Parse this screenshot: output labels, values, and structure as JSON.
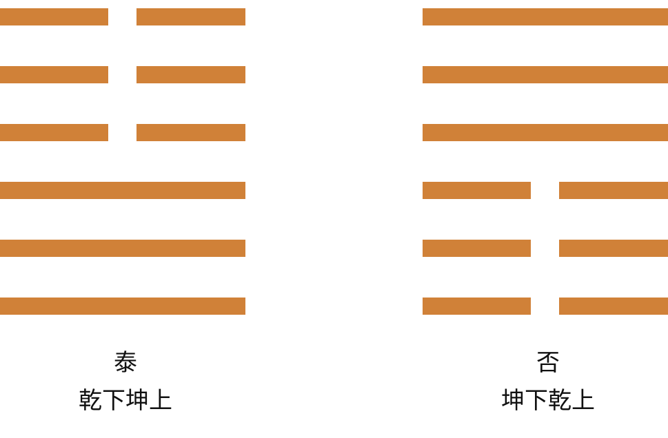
{
  "colors": {
    "line": "#D08138",
    "text": "#111111",
    "background": "#FFFFFF"
  },
  "hexagrams": [
    {
      "name": "泰",
      "description": "乾下坤上",
      "lines_top_to_bottom": [
        "yin",
        "yin",
        "yin",
        "yang",
        "yang",
        "yang"
      ]
    },
    {
      "name": "否",
      "description": "坤下乾上",
      "lines_top_to_bottom": [
        "yang",
        "yang",
        "yang",
        "yin",
        "yin",
        "yin"
      ]
    }
  ]
}
